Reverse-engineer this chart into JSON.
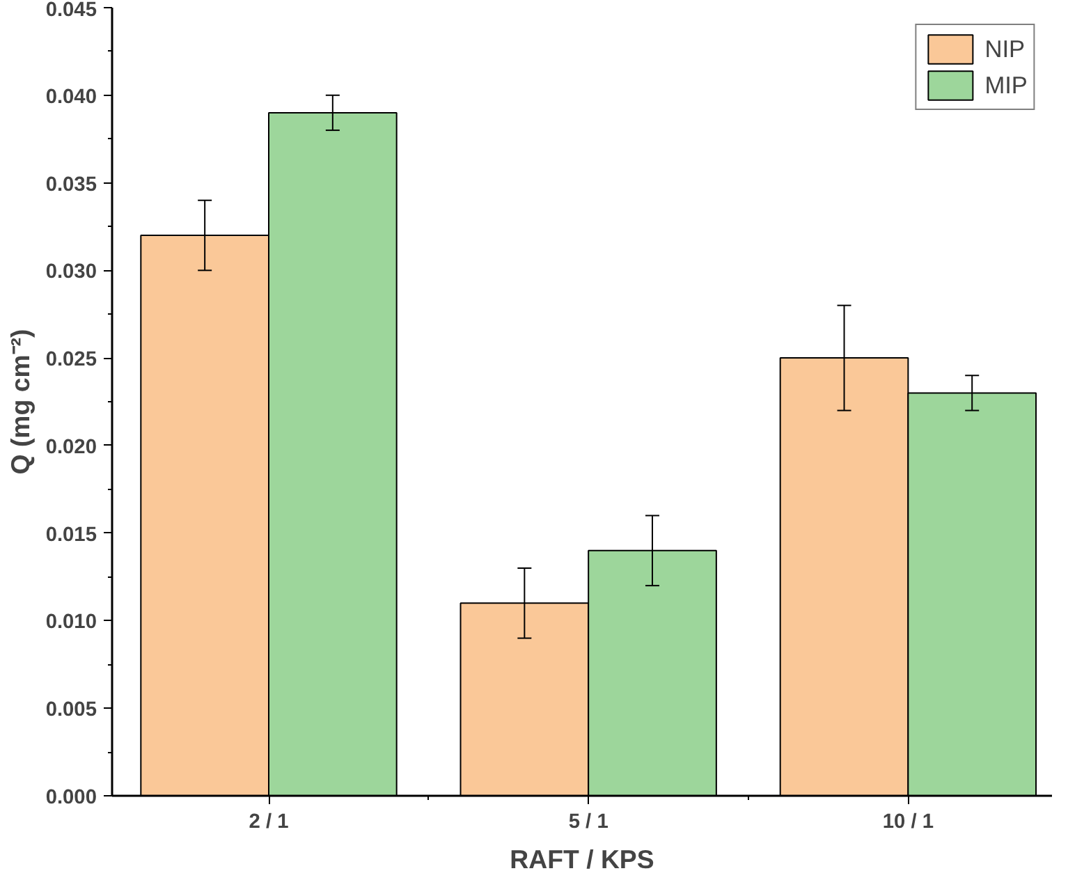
{
  "chart_data": {
    "type": "bar",
    "xlabel": "RAFT / KPS",
    "ylabel": "Q (mg cm⁻²)",
    "categories": [
      "2 / 1",
      "5 / 1",
      "10 / 1"
    ],
    "series": [
      {
        "name": "NIP",
        "color": "#fac898",
        "values": [
          0.032,
          0.011,
          0.025
        ],
        "errors": [
          0.002,
          0.002,
          0.003
        ]
      },
      {
        "name": "MIP",
        "color": "#9dd69b",
        "values": [
          0.039,
          0.014,
          0.023
        ],
        "errors": [
          0.001,
          0.002,
          0.001
        ]
      }
    ],
    "ylim": [
      0,
      0.045
    ],
    "yticks": [
      {
        "value": 0,
        "label": "0.000"
      },
      {
        "value": 0.005,
        "label": "0.005"
      },
      {
        "value": 0.01,
        "label": "0.010"
      },
      {
        "value": 0.015,
        "label": "0.015"
      },
      {
        "value": 0.02,
        "label": "0.020"
      },
      {
        "value": 0.025,
        "label": "0.025"
      },
      {
        "value": 0.03,
        "label": "0.030"
      },
      {
        "value": 0.035,
        "label": "0.035"
      },
      {
        "value": 0.04,
        "label": "0.040"
      },
      {
        "value": 0.045,
        "label": "0.045"
      }
    ],
    "grid": false,
    "legend": "top right"
  }
}
